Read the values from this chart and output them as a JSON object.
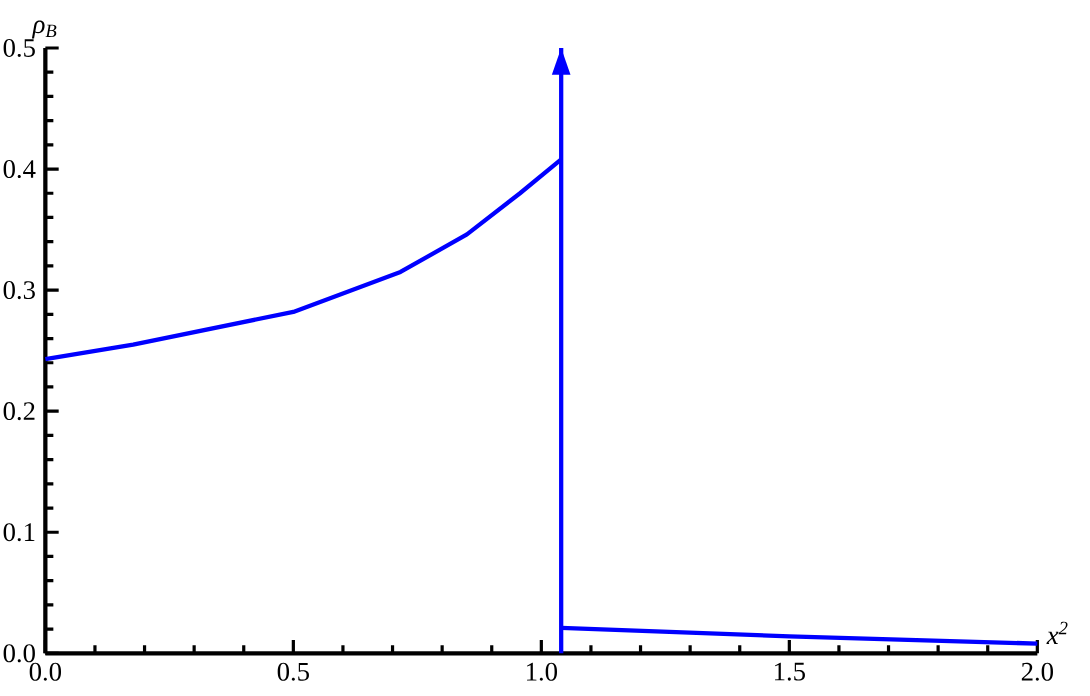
{
  "chart_data": {
    "type": "line",
    "xlabel": "x$^{2}$",
    "ylabel": "ρ$_{B}$",
    "xlim": [
      0,
      2
    ],
    "ylim": [
      0,
      0.5
    ],
    "xticks": [
      {
        "value": 0,
        "label": "0.0"
      },
      0.5,
      {
        "value": 1,
        "label": "1.0"
      },
      1.5,
      {
        "value": 2,
        "label": "2.0"
      }
    ],
    "yticks": [
      {
        "value": 0,
        "label": "0.0"
      },
      0.1,
      0.2,
      0.3,
      0.4,
      0.5
    ],
    "grid": false,
    "legend": false,
    "marker": "none",
    "line_style": "solid",
    "series": [
      {
        "color": "#0000ff",
        "x": [
          0,
          0.177,
          0.5,
          0.716,
          0.85,
          0.957,
          1.04
        ],
        "values": [
          0.243,
          0.255,
          0.282,
          0.315,
          0.346,
          0.38,
          0.408
        ]
      },
      {
        "color": "#0000ff",
        "x": [
          1.04,
          1.04
        ],
        "values": [
          0,
          0.5
        ]
      },
      {
        "color": "#0000ff",
        "x": [
          1.04,
          1.5,
          2
        ],
        "values": [
          0.021,
          0.014,
          0.008
        ]
      }
    ]
  }
}
